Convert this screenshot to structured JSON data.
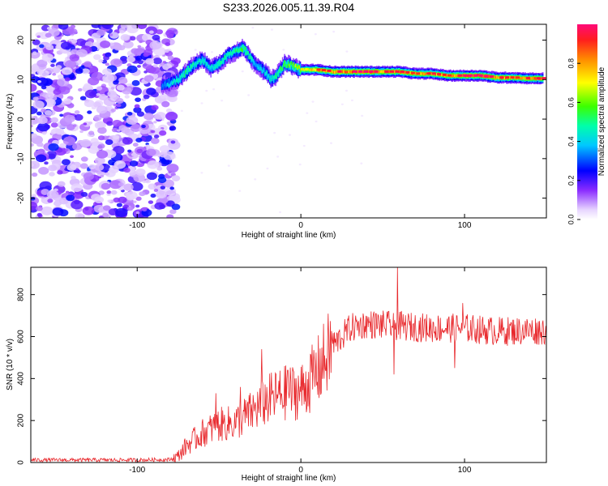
{
  "title": "S233.2026.005.11.39.R04",
  "chart_data": [
    {
      "type": "heatmap",
      "xlabel": "Height of straight line (km)",
      "ylabel": "Frequency (Hz)",
      "xlim": [
        -165,
        150
      ],
      "ylim": [
        -25,
        24
      ],
      "xticks": [
        -100,
        0,
        100
      ],
      "yticks": [
        -20,
        -10,
        0,
        10,
        20
      ],
      "colorbar": {
        "label": "Normalized spectral amplitude",
        "range": [
          0,
          1
        ],
        "ticks": [
          "0.0",
          "0.2",
          "0.4",
          "0.6",
          "0.8"
        ]
      },
      "noise_region_x": [
        -165,
        -80
      ],
      "ridge": {
        "x": [
          -85,
          -80,
          -75,
          -70,
          -65,
          -60,
          -55,
          -50,
          -45,
          -40,
          -35,
          -30,
          -28,
          -25,
          -22,
          -18,
          -15,
          -10,
          -5,
          0,
          10,
          20,
          30,
          40,
          50,
          60,
          70,
          80,
          90,
          95,
          100,
          110,
          120,
          130,
          140,
          148
        ],
        "freq": [
          8.5,
          9,
          10,
          12,
          14,
          15,
          13,
          14,
          16,
          17,
          18,
          15,
          14,
          13,
          12,
          10,
          11,
          14,
          13.5,
          12.5,
          12.5,
          12,
          12,
          12,
          12,
          12,
          11.5,
          11.5,
          11,
          11,
          11,
          11,
          10.5,
          10.5,
          10.3,
          10.3
        ],
        "amplitude": [
          0.35,
          0.45,
          0.5,
          0.55,
          0.5,
          0.5,
          0.45,
          0.55,
          0.5,
          0.55,
          0.6,
          0.5,
          0.4,
          0.45,
          0.45,
          0.5,
          0.55,
          0.6,
          0.65,
          0.75,
          0.85,
          0.9,
          0.95,
          0.95,
          0.9,
          0.9,
          0.85,
          0.9,
          0.85,
          0.9,
          0.95,
          0.95,
          0.9,
          0.85,
          0.9,
          0.9
        ]
      }
    },
    {
      "type": "line",
      "xlabel": "Height of straight line (km)",
      "ylabel": "SNR (10 * v/v)",
      "xlim": [
        -165,
        150
      ],
      "ylim": [
        0,
        930
      ],
      "xticks": [
        -100,
        0,
        100
      ],
      "yticks": [
        0,
        200,
        400,
        600,
        800
      ],
      "color": "#e8282c",
      "trend": {
        "x": [
          -165,
          -100,
          -80,
          -75,
          -70,
          -60,
          -50,
          -40,
          -30,
          -20,
          -10,
          0,
          10,
          20,
          30,
          40,
          60,
          80,
          100,
          120,
          150
        ],
        "y": [
          12,
          12,
          14,
          30,
          80,
          140,
          180,
          190,
          240,
          300,
          330,
          340,
          430,
          560,
          640,
          660,
          650,
          640,
          640,
          625,
          630
        ]
      },
      "spikes": [
        {
          "x": -52,
          "y": 330
        },
        {
          "x": -37,
          "y": 360
        },
        {
          "x": -24,
          "y": 540
        },
        {
          "x": -8,
          "y": 440
        },
        {
          "x": 59,
          "y": 930
        },
        {
          "x": 57,
          "y": 420
        },
        {
          "x": 94,
          "y": 450
        },
        {
          "x": 99,
          "y": 760
        }
      ]
    }
  ]
}
